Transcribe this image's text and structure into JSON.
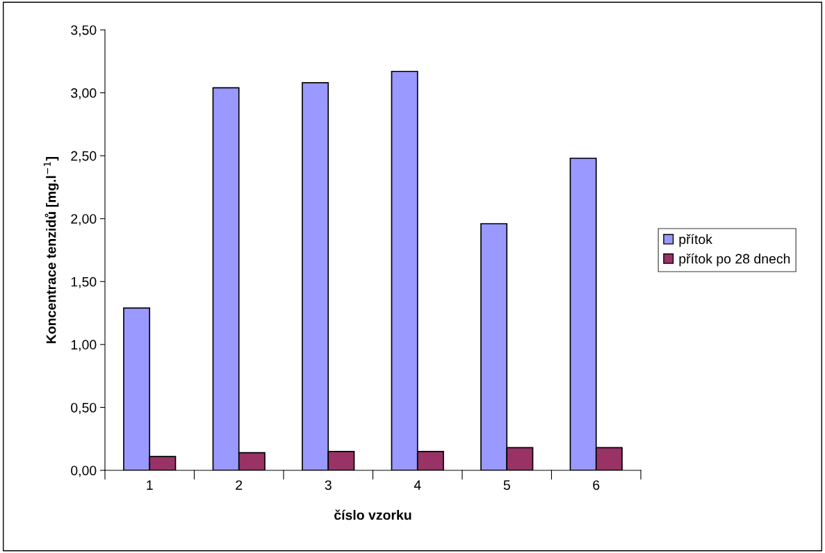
{
  "chart_data": {
    "type": "bar",
    "xlabel": "číslo vzorku",
    "ylabel": "Koncentrace tenzidů [mg.l$^{−1}$]",
    "categories": [
      "1",
      "2",
      "3",
      "4",
      "5",
      "6"
    ],
    "series": [
      {
        "name": "přítok",
        "color": "#9999ff",
        "values": [
          1.29,
          3.04,
          3.08,
          3.17,
          1.96,
          2.48
        ]
      },
      {
        "name": "přítok po 28 dnech",
        "color": "#993366",
        "values": [
          0.11,
          0.14,
          0.15,
          0.15,
          0.18,
          0.18
        ]
      }
    ],
    "ylim": [
      0,
      3.5
    ],
    "yticks": [
      {
        "value": 0,
        "label": "0,00"
      },
      {
        "value": 0.5,
        "label": "0,50"
      },
      {
        "value": 1,
        "label": "1,00"
      },
      {
        "value": 1.5,
        "label": "1,50"
      },
      {
        "value": 2,
        "label": "2,00"
      },
      {
        "value": 2.5,
        "label": "2,50"
      },
      {
        "value": 3,
        "label": "3,00"
      },
      {
        "value": 3.5,
        "label": "3,50"
      }
    ],
    "grid": false,
    "legend": "right"
  }
}
